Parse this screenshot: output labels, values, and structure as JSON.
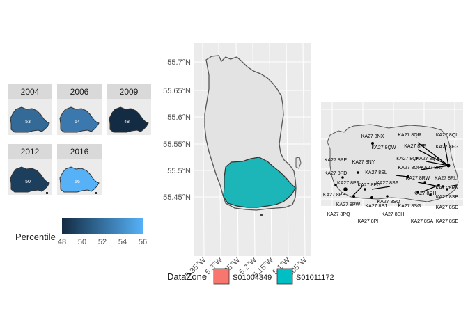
{
  "facets": [
    {
      "year": "2004",
      "value": "53",
      "percentile": 53
    },
    {
      "year": "2006",
      "value": "54",
      "percentile": 54
    },
    {
      "year": "2009",
      "value": "48",
      "percentile": 48
    },
    {
      "year": "2012",
      "value": "50",
      "percentile": 50
    },
    {
      "year": "2016",
      "value": "56",
      "percentile": 56
    }
  ],
  "colorbar": {
    "title": "Percentile",
    "ticks": [
      "48",
      "50",
      "52",
      "54",
      "56"
    ],
    "tick_values": [
      48,
      50,
      52,
      54,
      56
    ],
    "min": 48,
    "max": 56,
    "low_color": "#132b43",
    "high_color": "#56b1f7"
  },
  "main_map": {
    "lat_labels": [
      "55.7°N",
      "55.65°N",
      "55.6°N",
      "55.55°N",
      "55.5°N",
      "55.45°N"
    ],
    "lon_labels": [
      "5.35°W",
      "5.3°W",
      "5.25°W",
      "5.2°W",
      "5.15°W",
      "5.1°W",
      "5.05°W"
    ],
    "island_fill": "#e3e3e3",
    "highlight_fill": "#1cb6b8"
  },
  "legend": {
    "title": "DataZone",
    "items": [
      {
        "label": "S01004349",
        "color": "#f8766d"
      },
      {
        "label": "S01011172",
        "color": "#00bfc4"
      }
    ]
  },
  "postcodes": [
    "KA27 8NX",
    "KA27 8QR",
    "KA27 8QL",
    "KA27 8FF",
    "KA27 8QW",
    "KA27 8FG",
    "KA27 8PE",
    "KA27 8NY",
    "KA27 8QN",
    "KA27 8QX",
    "KA27 8PD",
    "KA27 8QP",
    "KA27 8RJ",
    "KA27 8SL",
    "KA27 8RW",
    "KA27 8RL",
    "KA27 8PF",
    "KA27 8PG",
    "KA27 8SF",
    "KA27 8RN",
    "KA27 8PB",
    "KA27 8RH",
    "KA27 8SB",
    "KA27 8PW",
    "KA27 8SQ",
    "KA27 8SJ",
    "KA27 8SG",
    "KA27 8SD",
    "KA27 8PQ",
    "KA27 8SH",
    "KA27 8PH",
    "KA27 8SA",
    "KA27 8SE"
  ]
}
